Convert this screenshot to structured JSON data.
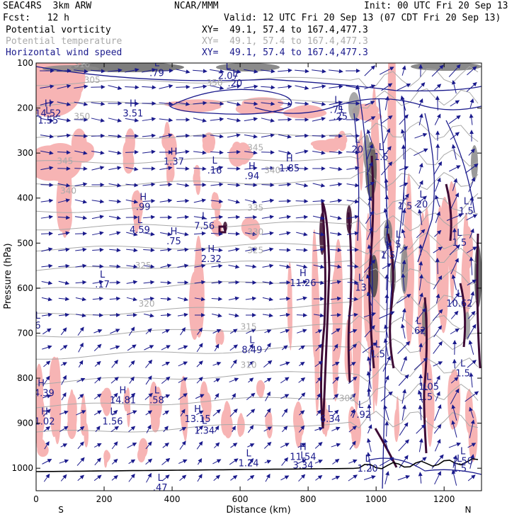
{
  "header": {
    "left1": "SEAC4RS  3km ARW",
    "left2": "Fcst:   12 h",
    "center": "NCAR/MMM",
    "init": "Init: 00 UTC Fri 20 Sep 13",
    "valid": "Valid: 12 UTC Fri 20 Sep 13 (07 CDT Fri 20 Sep 13)"
  },
  "legend": [
    {
      "label": "Potential vorticity",
      "xy": "XY=  49.1, 57.4 to 167.4,477.3",
      "color": "#000000"
    },
    {
      "label": "Potential temperature",
      "xy": "XY=  49.1, 57.4 to 167.4,477.3",
      "color": "#aaaaaa"
    },
    {
      "label": "Horizontal wind speed",
      "xy": "XY=  49.1, 57.4 to 167.4,477.3",
      "color": "#1a1a8c"
    }
  ],
  "chart_data": {
    "type": "cross-section",
    "xlabel": "Distance (km)",
    "ylabel": "Pressure (hPa)",
    "xlim": [
      0,
      1310
    ],
    "ylim": [
      1050,
      100
    ],
    "x_ticks": [
      "0",
      "200",
      "400",
      "600",
      "800",
      "1000",
      "1200"
    ],
    "y_ticks": [
      "100",
      "200",
      "300",
      "400",
      "500",
      "600",
      "700",
      "800",
      "900",
      "1000"
    ],
    "x_ends": [
      "S",
      "N"
    ],
    "theta_labels": [
      {
        "text": "310",
        "x": 135,
        "p": 103
      },
      {
        "text": "305",
        "x": 165,
        "p": 138
      },
      {
        "text": "350",
        "x": 525,
        "p": 144
      },
      {
        "text": "350",
        "x": 135,
        "p": 219
      },
      {
        "text": "345",
        "x": 85,
        "p": 318
      },
      {
        "text": "345",
        "x": 645,
        "p": 288
      },
      {
        "text": "340",
        "x": 95,
        "p": 384
      },
      {
        "text": "340",
        "x": 695,
        "p": 338
      },
      {
        "text": "335",
        "x": 645,
        "p": 422
      },
      {
        "text": "330",
        "x": 645,
        "p": 475
      },
      {
        "text": "325",
        "x": 315,
        "p": 550
      },
      {
        "text": "325",
        "x": 645,
        "p": 516
      },
      {
        "text": "320",
        "x": 325,
        "p": 635
      },
      {
        "text": "315",
        "x": 625,
        "p": 686
      },
      {
        "text": "310",
        "x": 625,
        "p": 771
      },
      {
        "text": "305",
        "x": 915,
        "p": 845
      }
    ],
    "extrema": [
      {
        "type": "H",
        "value": "14.52",
        "x": 35,
        "p": 203
      },
      {
        "type": "L",
        "value": "1.55",
        "x": 35,
        "p": 219
      },
      {
        "type": "H",
        "value": "3.51",
        "x": 285,
        "p": 203
      },
      {
        "type": "H",
        "value": "1.37",
        "x": 405,
        "p": 310
      },
      {
        "type": "L",
        "value": ".16",
        "x": 525,
        "p": 330
      },
      {
        "type": "H",
        "value": ".94",
        "x": 635,
        "p": 342
      },
      {
        "type": "H",
        "value": "1.85",
        "x": 745,
        "p": 325
      },
      {
        "type": "H",
        "value": ".99",
        "x": 315,
        "p": 411
      },
      {
        "type": "L",
        "value": "4.59",
        "x": 305,
        "p": 462
      },
      {
        "type": "L",
        "value": "7.56",
        "x": 495,
        "p": 453
      },
      {
        "type": "H",
        "value": ".75",
        "x": 405,
        "p": 487
      },
      {
        "type": "H",
        "value": "2.32",
        "x": 515,
        "p": 526
      },
      {
        "type": "L",
        "value": ".17",
        "x": 195,
        "p": 583
      },
      {
        "type": "H",
        "value": "11.26",
        "x": 785,
        "p": 580
      },
      {
        "type": "L",
        "value": "8.49",
        "x": 635,
        "p": 728
      },
      {
        "type": "H",
        "value": "14.39",
        "x": 15,
        "p": 824
      },
      {
        "type": "H",
        "value": "14.81",
        "x": 255,
        "p": 840
      },
      {
        "type": "L",
        "value": "1.56",
        "x": 225,
        "p": 887
      },
      {
        "type": "L",
        "value": ".58",
        "x": 355,
        "p": 840
      },
      {
        "type": "H",
        "value": "1.02",
        "x": 25,
        "p": 887
      },
      {
        "type": "H",
        "value": "13.15",
        "x": 475,
        "p": 882
      },
      {
        "type": "L",
        "value": "1.34",
        "x": 495,
        "p": 908
      },
      {
        "type": "L",
        "value": "6.34",
        "x": 865,
        "p": 882
      },
      {
        "type": "L",
        "value": "1.24",
        "x": 625,
        "p": 980
      },
      {
        "type": "H",
        "value": "11.54",
        "x": 785,
        "p": 966
      },
      {
        "type": "L",
        "value": "3.34",
        "x": 785,
        "p": 985
      },
      {
        "type": "L",
        "value": ".47",
        "x": 365,
        "p": 1034
      },
      {
        "type": "L",
        "value": "2.07",
        "x": 565,
        "p": 120
      },
      {
        "type": "L",
        "value": ".20",
        "x": 585,
        "p": 136
      },
      {
        "type": "L",
        "value": ".71",
        "x": 885,
        "p": 195
      },
      {
        "type": "L",
        "value": ".25",
        "x": 895,
        "p": 210
      },
      {
        "type": "L",
        "value": ".79",
        "x": 355,
        "p": 113
      },
      {
        "type": "L",
        "value": "1.5",
        "x": 1015,
        "p": 300
      },
      {
        "type": "L",
        "value": "1.5",
        "x": 1085,
        "p": 409
      },
      {
        "type": "L",
        "value": "1.5",
        "x": 1035,
        "p": 518
      },
      {
        "type": "L",
        "value": "1.5",
        "x": 1245,
        "p": 490
      },
      {
        "type": "L",
        "value": "10.62",
        "x": 1245,
        "p": 625
      },
      {
        "type": "L",
        "value": ".62",
        "x": 1125,
        "p": 686
      },
      {
        "type": "L",
        "value": "1.5",
        "x": 1005,
        "p": 738
      },
      {
        "type": "L",
        "value": "1.5",
        "x": 1255,
        "p": 780
      },
      {
        "type": "L",
        "value": "1.05",
        "x": 1155,
        "p": 810
      },
      {
        "type": "L",
        "value": "1.5",
        "x": 1145,
        "p": 833
      },
      {
        "type": "L",
        "value": "7.92",
        "x": 955,
        "p": 872
      },
      {
        "type": "L",
        "value": "2.50",
        "x": 1255,
        "p": 975
      },
      {
        "type": "L",
        "value": "1.5",
        "x": 1245,
        "p": 992
      },
      {
        "type": "L",
        "value": "1.20",
        "x": 975,
        "p": 992
      },
      {
        "type": "L",
        "value": "1.5",
        "x": 1265,
        "p": 420
      },
      {
        "type": "L",
        "value": "20",
        "x": 1135,
        "p": 405
      },
      {
        "type": "L",
        "value": "20",
        "x": 945,
        "p": 283
      },
      {
        "type": "L",
        "value": "5",
        "x": 1065,
        "p": 494
      },
      {
        "type": "L",
        "value": "6",
        "x": 5,
        "p": 674
      },
      {
        "type": "L",
        "value": "13",
        "x": 955,
        "p": 590
      }
    ]
  }
}
